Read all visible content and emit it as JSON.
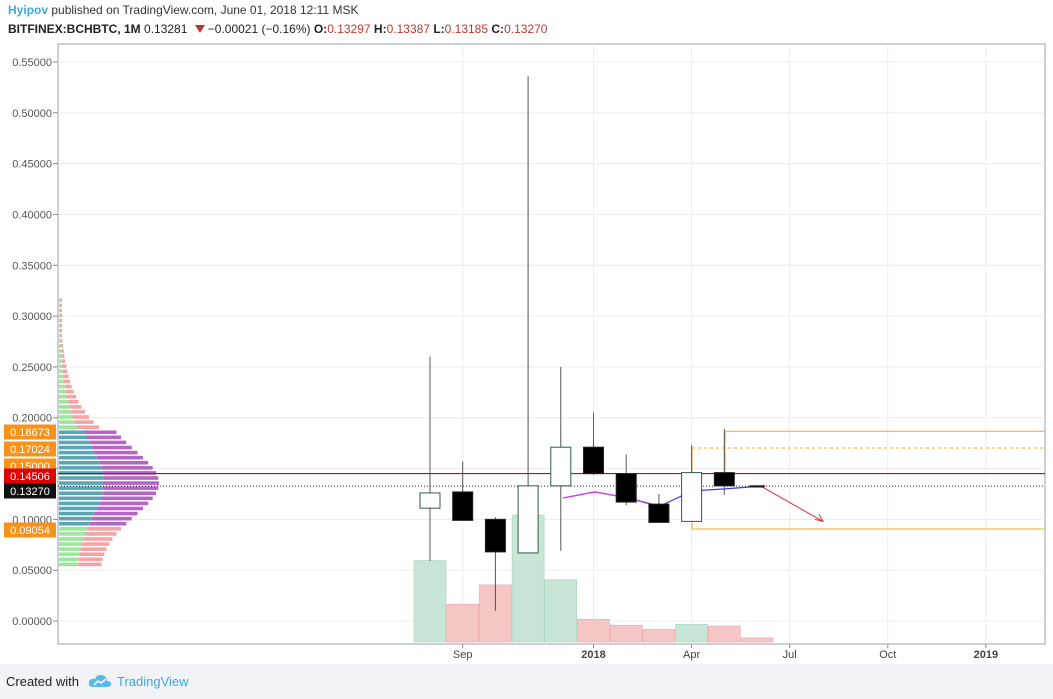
{
  "header": {
    "author": "Hyipov",
    "published_text": "published on TradingView.com, June 01, 2018 12:11 MSK",
    "symbol": "BITFINEX:BCHBTC, 1M",
    "last": "0.13281",
    "change": "−0.00021 (−0.16%)",
    "o_label": "O:",
    "o_value": "0.13297",
    "h_label": "H:",
    "h_value": "0.13387",
    "l_label": "L:",
    "l_value": "0.13185",
    "c_label": "C:",
    "c_value": "0.13270"
  },
  "footer": {
    "created_with": "Created with",
    "brand": "TradingView"
  },
  "colors": {
    "up_fill": "#ffffff",
    "down_fill": "#000000",
    "up_border": "#2e5d46",
    "wick": "#555555",
    "vol_up": "#c8e6d5",
    "vol_down": "#f5c6c6",
    "resistance": "#e00000",
    "orange": "#f5a623",
    "blue_line": "#3b3bdf",
    "pink_line": "#e040e0",
    "label_orange": "#f7931a",
    "label_red": "#e00000",
    "label_black": "#111111"
  },
  "chart_data": {
    "type": "candlestick",
    "ylim": [
      -0.02,
      0.56
    ],
    "y_ticks": [
      "0.00000",
      "0.05000",
      "0.10000",
      "0.15000",
      "0.20000",
      "0.25000",
      "0.30000",
      "0.35000",
      "0.40000",
      "0.45000",
      "0.50000",
      "0.55000"
    ],
    "x_ticks": [
      "Sep",
      "2018",
      "Apr",
      "Jul",
      "Oct",
      "2019"
    ],
    "grid": true,
    "candles": [
      {
        "month": "2017-08",
        "open": 0.111,
        "high": 0.26,
        "low": 0.059,
        "close": 0.126,
        "volume_dir": "up",
        "volume": 0.072
      },
      {
        "month": "2017-09",
        "open": 0.127,
        "high": 0.157,
        "low": 0.099,
        "close": 0.099,
        "volume_dir": "down",
        "volume": 0.02
      },
      {
        "month": "2017-10",
        "open": 0.1,
        "high": 0.102,
        "low": 0.01,
        "close": 0.068,
        "volume_dir": "down",
        "volume": 0.043
      },
      {
        "month": "2017-11",
        "open": 0.067,
        "high": 0.536,
        "low": 0.067,
        "close": 0.133,
        "volume_dir": "up",
        "volume": 0.126
      },
      {
        "month": "2017-12",
        "open": 0.133,
        "high": 0.25,
        "low": 0.069,
        "close": 0.171,
        "volume_dir": "up",
        "volume": 0.049
      },
      {
        "month": "2018-01",
        "open": 0.171,
        "high": 0.205,
        "low": 0.144,
        "close": 0.145,
        "volume_dir": "down",
        "volume": 0.002
      },
      {
        "month": "2018-02",
        "open": 0.145,
        "high": 0.164,
        "low": 0.114,
        "close": 0.117,
        "volume_dir": "down",
        "volume": -0.005
      },
      {
        "month": "2018-03",
        "open": 0.115,
        "high": 0.125,
        "low": 0.097,
        "close": 0.097,
        "volume_dir": "down",
        "volume": -0.01
      },
      {
        "month": "2018-04",
        "open": 0.098,
        "high": 0.173,
        "low": 0.098,
        "close": 0.146,
        "volume_dir": "up",
        "volume": -0.004
      },
      {
        "month": "2018-05",
        "open": 0.146,
        "high": 0.189,
        "low": 0.124,
        "close": 0.133,
        "volume_dir": "down",
        "volume": -0.006
      },
      {
        "month": "2018-06",
        "open": 0.133,
        "high": 0.1339,
        "low": 0.1319,
        "close": 0.1327,
        "volume_dir": "down",
        "volume": -0.02
      }
    ],
    "price_labels": [
      {
        "text": "0.18673",
        "value": 0.18673,
        "color": "orange"
      },
      {
        "text": "0.17024",
        "value": 0.17024,
        "color": "orange"
      },
      {
        "text": "0.15000",
        "value": 0.15,
        "color": "orange"
      },
      {
        "text": "0.14506",
        "value": 0.14506,
        "color": "red"
      },
      {
        "text": "0.13270",
        "value": 0.1327,
        "color": "black"
      },
      {
        "text": "0.09054",
        "value": 0.09054,
        "color": "orange"
      }
    ],
    "horizontal_lines": [
      {
        "value": 0.14506,
        "color": "red",
        "style": "solid"
      },
      {
        "value": 0.1327,
        "color": "black",
        "style": "dotted"
      },
      {
        "value": 0.18673,
        "color": "orange",
        "style": "solid"
      },
      {
        "value": 0.17024,
        "color": "orange",
        "style": "dashed"
      },
      {
        "value": 0.09054,
        "color": "orange",
        "style": "solid"
      }
    ]
  }
}
